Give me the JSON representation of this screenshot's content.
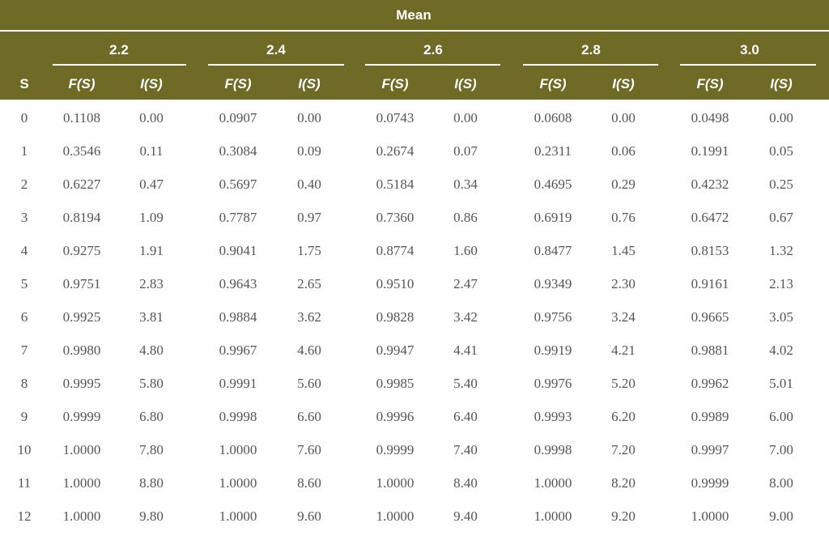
{
  "header": {
    "title": "Mean",
    "means": [
      "2.2",
      "2.4",
      "2.6",
      "2.8",
      "3.0"
    ],
    "columns": [
      "S",
      "F(S)",
      "I(S)",
      "F(S)",
      "I(S)",
      "F(S)",
      "I(S)",
      "F(S)",
      "I(S)",
      "F(S)",
      "I(S)"
    ]
  },
  "table": {
    "rows": [
      [
        "0",
        "0.1108",
        "0.00",
        "0.0907",
        "0.00",
        "0.0743",
        "0.00",
        "0.0608",
        "0.00",
        "0.0498",
        "0.00"
      ],
      [
        "1",
        "0.3546",
        "0.11",
        "0.3084",
        "0.09",
        "0.2674",
        "0.07",
        "0.2311",
        "0.06",
        "0.1991",
        "0.05"
      ],
      [
        "2",
        "0.6227",
        "0.47",
        "0.5697",
        "0.40",
        "0.5184",
        "0.34",
        "0.4695",
        "0.29",
        "0.4232",
        "0.25"
      ],
      [
        "3",
        "0.8194",
        "1.09",
        "0.7787",
        "0.97",
        "0.7360",
        "0.86",
        "0.6919",
        "0.76",
        "0.6472",
        "0.67"
      ],
      [
        "4",
        "0.9275",
        "1.91",
        "0.9041",
        "1.75",
        "0.8774",
        "1.60",
        "0.8477",
        "1.45",
        "0.8153",
        "1.32"
      ],
      [
        "5",
        "0.9751",
        "2.83",
        "0.9643",
        "2.65",
        "0.9510",
        "2.47",
        "0.9349",
        "2.30",
        "0.9161",
        "2.13"
      ],
      [
        "6",
        "0.9925",
        "3.81",
        "0.9884",
        "3.62",
        "0.9828",
        "3.42",
        "0.9756",
        "3.24",
        "0.9665",
        "3.05"
      ],
      [
        "7",
        "0.9980",
        "4.80",
        "0.9967",
        "4.60",
        "0.9947",
        "4.41",
        "0.9919",
        "4.21",
        "0.9881",
        "4.02"
      ],
      [
        "8",
        "0.9995",
        "5.80",
        "0.9991",
        "5.60",
        "0.9985",
        "5.40",
        "0.9976",
        "5.20",
        "0.9962",
        "5.01"
      ],
      [
        "9",
        "0.9999",
        "6.80",
        "0.9998",
        "6.60",
        "0.9996",
        "6.40",
        "0.9993",
        "6.20",
        "0.9989",
        "6.00"
      ],
      [
        "10",
        "1.0000",
        "7.80",
        "1.0000",
        "7.60",
        "0.9999",
        "7.40",
        "0.9998",
        "7.20",
        "0.9997",
        "7.00"
      ],
      [
        "11",
        "1.0000",
        "8.80",
        "1.0000",
        "8.60",
        "1.0000",
        "8.40",
        "1.0000",
        "8.20",
        "0.9999",
        "8.00"
      ],
      [
        "12",
        "1.0000",
        "9.80",
        "1.0000",
        "9.60",
        "1.0000",
        "9.40",
        "1.0000",
        "9.20",
        "1.0000",
        "9.00"
      ]
    ]
  }
}
